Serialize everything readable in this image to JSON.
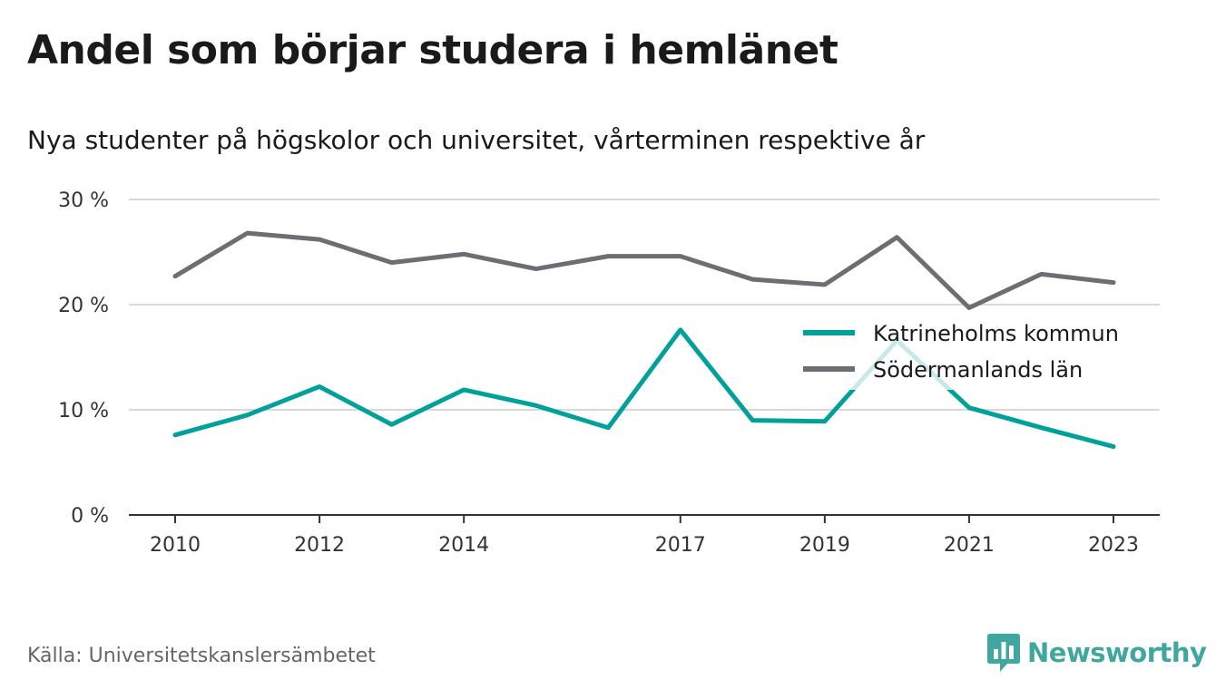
{
  "header": {
    "title": "Andel som börjar studera i hemlänet",
    "subtitle": "Nya studenter på högskolor och universitet, vårterminen respektive år"
  },
  "footer": {
    "source": "Källa: Universitetskanslersämbetet",
    "brand": "Newsworthy",
    "brand_icon": "bar-chart-icon",
    "brand_color": "#3fa7a0"
  },
  "chart_data": {
    "type": "line",
    "x": [
      2010,
      2011,
      2012,
      2013,
      2014,
      2015,
      2016,
      2017,
      2018,
      2019,
      2020,
      2021,
      2022,
      2023
    ],
    "x_tick_labels": [
      "2010",
      "2012",
      "2014",
      "2017",
      "2019",
      "2021",
      "2023"
    ],
    "y_tick_labels": [
      "0 %",
      "10 %",
      "20 %",
      "30 %"
    ],
    "ylim": [
      0,
      30
    ],
    "grid": true,
    "legend_position": "right",
    "series": [
      {
        "name": "Katrineholms kommun",
        "color": "#00a19a",
        "values": [
          7.6,
          9.5,
          12.2,
          8.6,
          11.9,
          10.4,
          8.3,
          17.6,
          9.0,
          8.9,
          16.6,
          10.2,
          8.3,
          6.5
        ]
      },
      {
        "name": "Södermanlands län",
        "color": "#6e6d74",
        "values": [
          22.7,
          26.8,
          26.2,
          24.0,
          24.8,
          23.4,
          24.6,
          24.6,
          22.4,
          21.9,
          26.4,
          19.7,
          22.9,
          22.1
        ]
      }
    ]
  }
}
